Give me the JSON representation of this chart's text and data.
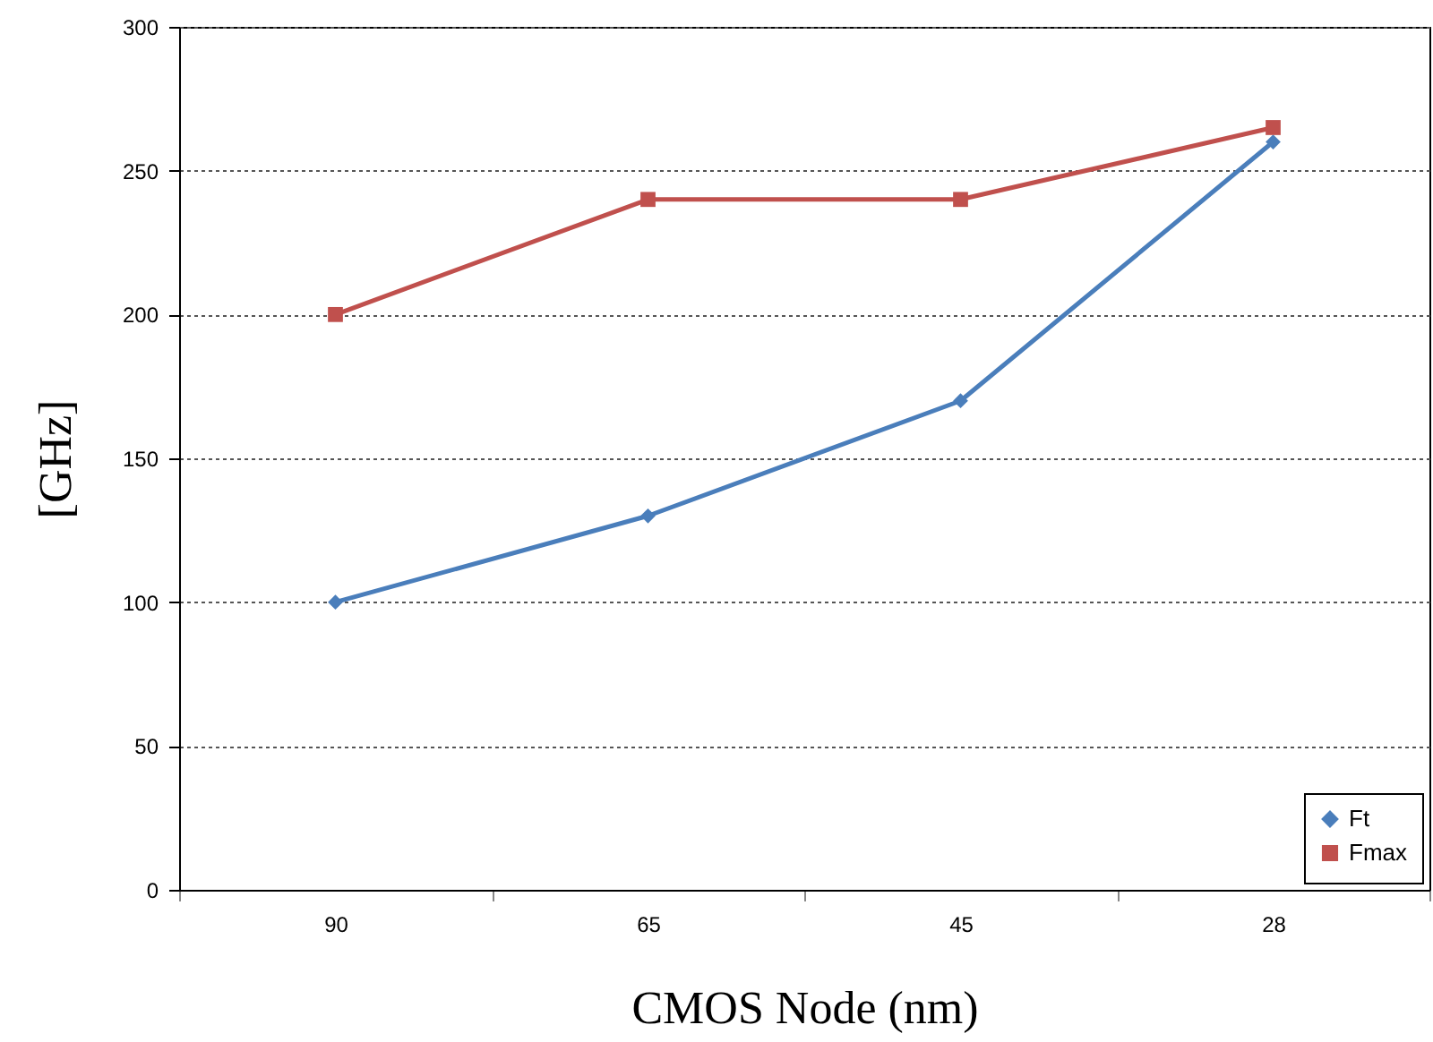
{
  "chart_data": {
    "type": "line",
    "xlabel": "CMOS Node (nm)",
    "ylabel": "[GHz]",
    "categories": [
      "90",
      "65",
      "45",
      "28"
    ],
    "series": [
      {
        "name": "Ft",
        "color": "#4a7ebb",
        "marker": "diamond",
        "values": [
          100,
          130,
          170,
          260
        ]
      },
      {
        "name": "Fmax",
        "color": "#c0504d",
        "marker": "square",
        "values": [
          200,
          240,
          240,
          265
        ]
      }
    ],
    "ylim": [
      0,
      300
    ],
    "yticks": [
      0,
      50,
      100,
      150,
      200,
      250,
      300
    ],
    "grid": "y",
    "legend": "bottom right",
    "line_style": "solid"
  }
}
